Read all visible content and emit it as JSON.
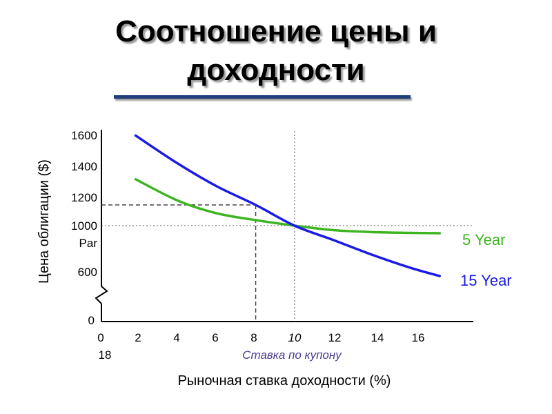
{
  "title_line1": "Соотношение цены и",
  "title_line2": "доходности",
  "colors": {
    "underline": "#1f3f7a",
    "coupon": "#4b3a8c"
  },
  "chart_data": {
    "type": "line",
    "xlabel": "Рыночная ставка доходности (%)",
    "ylabel": "Цена облигации ($)",
    "x_ticks": [
      "0",
      "2",
      "4",
      "6",
      "8",
      "10",
      "12",
      "14",
      "16"
    ],
    "x_extra_label": "18",
    "y_ticks": [
      "0",
      "600",
      "1000",
      "1200",
      "1400",
      "1600"
    ],
    "y_par_label": "Par",
    "coupon_label": "Ставка по купону",
    "coupon_rate": 10,
    "par_value": 1000,
    "guide_point": {
      "x": 8,
      "y": 1150
    },
    "series": [
      {
        "name": "5 Year",
        "color": "#3cb521",
        "x": [
          1.8,
          4,
          6,
          8,
          10,
          12,
          14,
          16,
          17.5
        ],
        "y": [
          1321,
          1180,
          1089,
          1040,
          1000,
          962,
          945,
          938,
          935
        ]
      },
      {
        "name": "15 Year",
        "color": "#1a1ae6",
        "x": [
          1.8,
          4,
          6,
          8,
          10,
          12,
          14,
          16,
          17.5
        ],
        "y": [
          1598,
          1420,
          1275,
          1150,
          1000,
          878,
          752,
          640,
          570
        ]
      }
    ]
  }
}
